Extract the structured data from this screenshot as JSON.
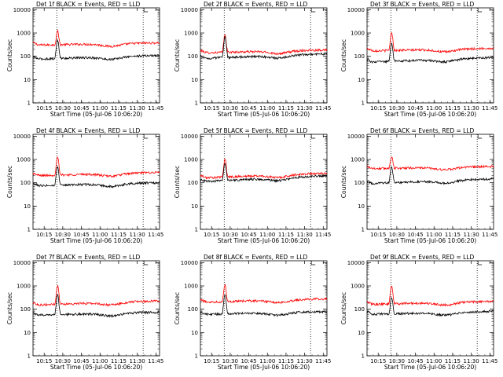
{
  "chart_data": [
    {
      "type": "line",
      "title": "Det 1f BLACK = Events, RED = LLD",
      "xlabel": "Start Time (05-Jul-06 10:06:20)",
      "ylabel": "Counts/sec",
      "yscale": "log",
      "ylim": [
        1,
        12000
      ],
      "xlim": [
        10.1,
        11.8
      ],
      "x_tick_labels": [
        "10:15",
        "10:30",
        "10:45",
        "11:00",
        "11:15",
        "11:30",
        "11:45"
      ],
      "y_tick_labels": [
        "1",
        "10",
        "100",
        "1000",
        "10000"
      ],
      "vlines_dotted": [
        10.42,
        11.58
      ],
      "series": [
        {
          "color": "#ff0000",
          "baseline": 300,
          "end": 380,
          "peak": 1200
        },
        {
          "color": "#000000",
          "baseline": 75,
          "end": 110,
          "peak": 500
        }
      ]
    },
    {
      "type": "line",
      "title": "Det 2f BLACK = Events, RED = LLD",
      "xlabel": "Start Time (05-Jul-06 10:06:20)",
      "ylabel": "Counts/sec",
      "yscale": "log",
      "ylim": [
        1,
        12000
      ],
      "xlim": [
        10.1,
        11.8
      ],
      "x_tick_labels": [
        "10:15",
        "10:30",
        "10:45",
        "11:00",
        "11:15",
        "11:30",
        "11:45"
      ],
      "y_tick_labels": [
        "1",
        "10",
        "100",
        "1000",
        "10000"
      ],
      "vlines_dotted": [
        10.42,
        11.58
      ],
      "series": [
        {
          "color": "#ff0000",
          "baseline": 140,
          "end": 190,
          "peak": 800
        },
        {
          "color": "#000000",
          "baseline": 80,
          "end": 130,
          "peak": 650
        }
      ]
    },
    {
      "type": "line",
      "title": "Det 3f BLACK = Events, RED = LLD",
      "xlabel": "Start Time (05-Jul-06 10:06:20)",
      "ylabel": "Counts/sec",
      "yscale": "log",
      "ylim": [
        1,
        12000
      ],
      "xlim": [
        10.1,
        11.8
      ],
      "x_tick_labels": [
        "10:15",
        "10:30",
        "10:45",
        "11:00",
        "11:15",
        "11:30",
        "11:45"
      ],
      "y_tick_labels": [
        "1",
        "10",
        "100",
        "1000",
        "10000"
      ],
      "vlines_dotted": [
        10.42,
        11.58
      ],
      "series": [
        {
          "color": "#ff0000",
          "baseline": 170,
          "end": 220,
          "peak": 1000
        },
        {
          "color": "#000000",
          "baseline": 55,
          "end": 90,
          "peak": 350
        }
      ]
    },
    {
      "type": "line",
      "title": "Det 4f BLACK = Events, RED = LLD",
      "xlabel": "Start Time (05-Jul-06 10:06:20)",
      "ylabel": "Counts/sec",
      "yscale": "log",
      "ylim": [
        1,
        12000
      ],
      "xlim": [
        10.1,
        11.8
      ],
      "x_tick_labels": [
        "10:15",
        "10:30",
        "10:45",
        "11:00",
        "11:15",
        "11:30",
        "11:45"
      ],
      "y_tick_labels": [
        "1",
        "10",
        "100",
        "1000",
        "10000"
      ],
      "vlines_dotted": [
        10.42,
        11.58
      ],
      "series": [
        {
          "color": "#ff0000",
          "baseline": 200,
          "end": 280,
          "peak": 1200
        },
        {
          "color": "#000000",
          "baseline": 75,
          "end": 100,
          "peak": 500
        }
      ]
    },
    {
      "type": "line",
      "title": "Det 5f BLACK = Events, RED = LLD",
      "xlabel": "Start Time (05-Jul-06 10:06:20)",
      "ylabel": "Counts/sec",
      "yscale": "log",
      "ylim": [
        1,
        12000
      ],
      "xlim": [
        10.1,
        11.8
      ],
      "x_tick_labels": [
        "10:15",
        "10:30",
        "10:45",
        "11:00",
        "11:15",
        "11:30",
        "11:45"
      ],
      "y_tick_labels": [
        "1",
        "10",
        "100",
        "1000",
        "10000"
      ],
      "vlines_dotted": [
        10.42,
        11.58
      ],
      "series": [
        {
          "color": "#ff0000",
          "baseline": 160,
          "end": 260,
          "peak": 1000
        },
        {
          "color": "#000000",
          "baseline": 110,
          "end": 200,
          "peak": 700
        }
      ]
    },
    {
      "type": "line",
      "title": "Det 6f BLACK = Events, RED = LLD",
      "xlabel": "Start Time (05-Jul-06 10:06:20)",
      "ylabel": "Counts/sec",
      "yscale": "log",
      "ylim": [
        1,
        12000
      ],
      "xlim": [
        10.1,
        11.8
      ],
      "x_tick_labels": [
        "10:15",
        "10:30",
        "10:45",
        "11:00",
        "11:15",
        "11:30",
        "11:45"
      ],
      "y_tick_labels": [
        "1",
        "10",
        "100",
        "1000",
        "10000"
      ],
      "vlines_dotted": [
        10.42,
        11.58
      ],
      "series": [
        {
          "color": "#ff0000",
          "baseline": 400,
          "end": 500,
          "peak": 1400
        },
        {
          "color": "#000000",
          "baseline": 90,
          "end": 150,
          "peak": 500
        }
      ]
    },
    {
      "type": "line",
      "title": "Det 7f BLACK = Events, RED = LLD",
      "xlabel": "Start Time (05-Jul-06 10:06:20)",
      "ylabel": "Counts/sec",
      "yscale": "log",
      "ylim": [
        1,
        12000
      ],
      "xlim": [
        10.1,
        11.8
      ],
      "x_tick_labels": [
        "10:15",
        "10:30",
        "10:45",
        "11:00",
        "11:15",
        "11:30",
        "11:45"
      ],
      "y_tick_labels": [
        "1",
        "10",
        "100",
        "1000",
        "10000"
      ],
      "vlines_dotted": [
        10.42,
        11.58
      ],
      "series": [
        {
          "color": "#ff0000",
          "baseline": 150,
          "end": 230,
          "peak": 1000
        },
        {
          "color": "#000000",
          "baseline": 55,
          "end": 75,
          "peak": 400
        }
      ]
    },
    {
      "type": "line",
      "title": "Det 8f BLACK = Events, RED = LLD",
      "xlabel": "Start Time (05-Jul-06 10:06:20)",
      "ylabel": "Counts/sec",
      "yscale": "log",
      "ylim": [
        1,
        12000
      ],
      "xlim": [
        10.1,
        11.8
      ],
      "x_tick_labels": [
        "10:15",
        "10:30",
        "10:45",
        "11:00",
        "11:15",
        "11:30",
        "11:45"
      ],
      "y_tick_labels": [
        "1",
        "10",
        "100",
        "1000",
        "10000"
      ],
      "vlines_dotted": [
        10.42,
        11.58
      ],
      "series": [
        {
          "color": "#ff0000",
          "baseline": 200,
          "end": 280,
          "peak": 1100
        },
        {
          "color": "#000000",
          "baseline": 60,
          "end": 80,
          "peak": 400
        }
      ]
    },
    {
      "type": "line",
      "title": "Det 9f BLACK = Events, RED = LLD",
      "xlabel": "Start Time (05-Jul-06 10:06:20)",
      "ylabel": "Counts/sec",
      "yscale": "log",
      "ylim": [
        1,
        12000
      ],
      "xlim": [
        10.1,
        11.8
      ],
      "x_tick_labels": [
        "10:15",
        "10:30",
        "10:45",
        "11:00",
        "11:15",
        "11:30",
        "11:45"
      ],
      "y_tick_labels": [
        "1",
        "10",
        "100",
        "1000",
        "10000"
      ],
      "vlines_dotted": [
        10.42,
        11.58
      ],
      "series": [
        {
          "color": "#ff0000",
          "baseline": 160,
          "end": 220,
          "peak": 1000
        },
        {
          "color": "#000000",
          "baseline": 60,
          "end": 80,
          "peak": 300
        }
      ]
    }
  ]
}
